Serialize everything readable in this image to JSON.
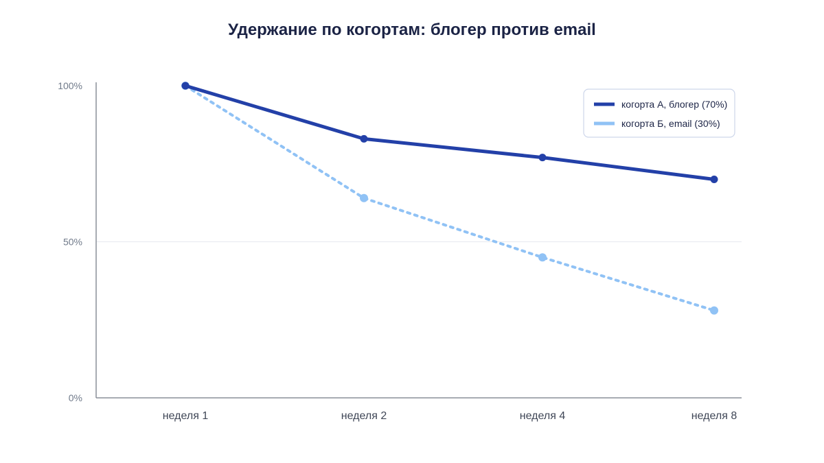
{
  "chart_data": {
    "type": "line",
    "title": "Удержание по когортам: блогер против email",
    "xlabel": "",
    "ylabel": "",
    "categories": [
      "неделя 1",
      "неделя 2",
      "неделя 4",
      "неделя 8"
    ],
    "ylim": [
      0,
      100
    ],
    "yticks": [
      0,
      50,
      100
    ],
    "ytick_labels": [
      "0%",
      "50%",
      "100%"
    ],
    "grid": "horizontal",
    "legend_position": "top-right",
    "series": [
      {
        "name": "когорта А, блогер (70%)",
        "values": [
          100,
          83,
          77,
          70
        ],
        "color": "#2340a8",
        "style": "solid"
      },
      {
        "name": "когорта Б, email (30%)",
        "values": [
          100,
          64,
          45,
          28
        ],
        "color": "#90c2f5",
        "style": "dotted"
      }
    ]
  }
}
